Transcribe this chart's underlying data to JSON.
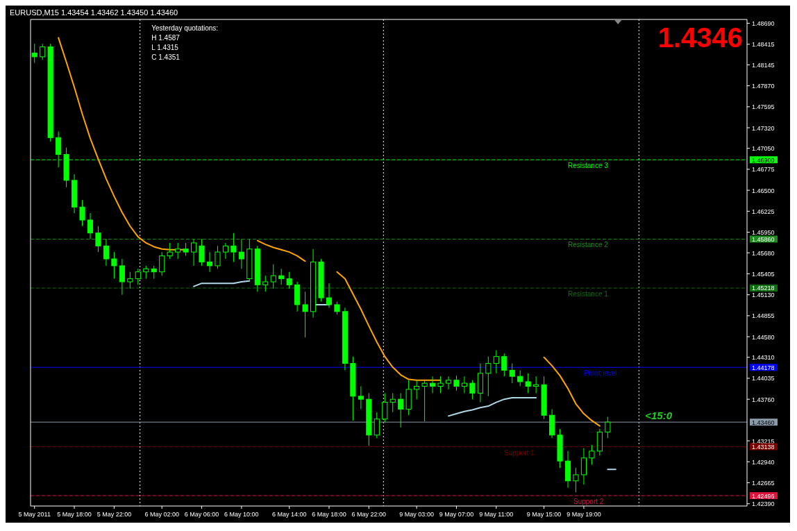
{
  "chart_data": {
    "type": "candlestick",
    "title": "EURUSD,M15  1.43454 1.43462 1.43450 1.43460",
    "annotations": [
      "1.4346",
      "<15:0",
      "Yesterday quotations:",
      "H 1.4587",
      "L 1.4315",
      "C 1.4351"
    ],
    "categories": [
      "5 May 2011",
      null,
      null,
      null,
      null,
      "5 May 18:00",
      null,
      null,
      null,
      null,
      "5 May 22:00",
      null,
      null,
      null,
      null,
      null,
      "6 May 02:00",
      null,
      null,
      null,
      null,
      "6 May 06:00",
      null,
      null,
      null,
      null,
      "6 May 10:00",
      null,
      null,
      null,
      null,
      null,
      "6 May 14:00",
      null,
      null,
      null,
      null,
      "6 May 18:00",
      null,
      null,
      null,
      null,
      "6 May 22:00",
      null,
      null,
      null,
      null,
      null,
      "9 May 03:00",
      null,
      null,
      null,
      null,
      "9 May 07:00",
      null,
      null,
      null,
      null,
      "9 May 11:00",
      null,
      null,
      null,
      null,
      null,
      "9 May 15:00",
      null,
      null,
      null,
      null,
      "9 May 19:00",
      null,
      null,
      null,
      null,
      null,
      null,
      null,
      null,
      null,
      null,
      null,
      null,
      null,
      null,
      null,
      null,
      null,
      null,
      null,
      null
    ],
    "ylim": [
      1.4236,
      1.4874
    ],
    "yticks": [
      {
        "value": 1.4869,
        "label": "1.48690"
      },
      {
        "value": 1.48415,
        "label": "1.48415"
      },
      {
        "value": 1.48145,
        "label": "1.48145"
      },
      {
        "value": 1.4787,
        "label": "1.47870"
      },
      {
        "value": 1.47595,
        "label": "1.47595"
      },
      {
        "value": 1.4732,
        "label": "1.47320"
      },
      {
        "value": 1.4705,
        "label": "1.47050"
      },
      {
        "value": 1.469,
        "label": "1.46900"
      },
      {
        "value": 1.46775,
        "label": "1.46775"
      },
      {
        "value": 1.465,
        "label": "1.46500"
      },
      {
        "value": 1.46225,
        "label": "1.46225"
      },
      {
        "value": 1.4595,
        "label": "1.45950"
      },
      {
        "value": 1.4586,
        "label": "1.45860"
      },
      {
        "value": 1.4568,
        "label": "1.45680"
      },
      {
        "value": 1.45405,
        "label": "1.45405"
      },
      {
        "value": 1.45218,
        "label": "1.45218"
      },
      {
        "value": 1.4513,
        "label": "1.45130"
      },
      {
        "value": 1.44855,
        "label": "1.44855"
      },
      {
        "value": 1.4458,
        "label": "1.44580"
      },
      {
        "value": 1.4431,
        "label": "1.44310"
      },
      {
        "value": 1.44178,
        "label": "1.44178"
      },
      {
        "value": 1.44035,
        "label": "1.44035"
      },
      {
        "value": 1.4376,
        "label": "1.43760"
      },
      {
        "value": 1.4346,
        "label": "1.43460"
      },
      {
        "value": 1.43215,
        "label": "1.43215"
      },
      {
        "value": 1.43138,
        "label": "1.43138"
      },
      {
        "value": 1.4294,
        "label": "1.42940"
      },
      {
        "value": 1.42665,
        "label": "1.42665"
      },
      {
        "value": 1.42496,
        "label": "1.42496"
      },
      {
        "value": 1.4239,
        "label": "1.42390"
      }
    ],
    "ref_lines": [
      {
        "axis": "y",
        "value": 1.469,
        "label": "Resistance 3",
        "color": "#00ff00",
        "line_style": "dashed"
      },
      {
        "axis": "y",
        "value": 1.4586,
        "label": "Resistance 2",
        "color": "#1e8c1e",
        "line_style": "dashed"
      },
      {
        "axis": "y",
        "value": 1.45218,
        "label": "Resistance 1",
        "color": "#0f6e0f",
        "line_style": "dashed"
      },
      {
        "axis": "y",
        "value": 1.44178,
        "label": "Piviot level",
        "color": "#0000ff",
        "line_style": "solid"
      },
      {
        "axis": "y",
        "value": 1.4346,
        "label": null,
        "color": "#8a9aaa",
        "line_style": "solid"
      },
      {
        "axis": "y",
        "value": 1.43138,
        "label": "Support 1",
        "color": "#7a0000",
        "line_style": "dashed"
      },
      {
        "axis": "y",
        "value": 1.42496,
        "label": "Support 2",
        "color": "#dc143c",
        "line_style": "dashed"
      }
    ],
    "series": [
      {
        "type": "line",
        "color": "#ffa500",
        "values": [
          null,
          null,
          null,
          1.485,
          1.4818,
          1.4785,
          1.475,
          1.4718,
          1.4691,
          1.4665,
          1.4642,
          1.4621,
          1.4603,
          1.4589,
          1.4581,
          1.4576,
          1.4573,
          1.4572,
          1.4572,
          1.4572,
          null,
          null,
          null,
          null,
          null,
          null,
          null,
          null,
          1.4584,
          1.4579,
          1.4575,
          1.4572,
          1.4569,
          1.4564,
          1.4557,
          null,
          null,
          null,
          1.4543,
          1.4534,
          1.4514,
          1.4494,
          1.4472,
          1.4451,
          1.4432,
          1.4418,
          1.4408,
          1.4402,
          1.4401,
          1.4401,
          1.4401,
          1.4401,
          null,
          null,
          null,
          null,
          null,
          null,
          null,
          null,
          null,
          null,
          null,
          null,
          1.4431,
          1.442,
          1.4407,
          1.439,
          1.437,
          1.4357,
          1.4348,
          1.4341,
          null,
          null,
          null,
          null,
          null,
          null,
          null,
          null,
          null,
          null,
          null,
          null,
          null,
          null,
          null,
          null,
          null,
          null
        ]
      },
      {
        "type": "line",
        "color": "#b0d8e8",
        "values": [
          null,
          null,
          null,
          null,
          null,
          null,
          null,
          null,
          null,
          null,
          null,
          null,
          null,
          null,
          null,
          null,
          null,
          null,
          null,
          null,
          1.4524,
          1.4528,
          1.4528,
          1.4528,
          1.4528,
          1.4528,
          1.453,
          1.4531,
          null,
          null,
          null,
          null,
          null,
          null,
          null,
          1.45,
          1.45,
          1.45,
          null,
          null,
          null,
          null,
          null,
          null,
          null,
          null,
          null,
          null,
          null,
          null,
          null,
          null,
          1.4354,
          1.4357,
          1.436,
          1.4362,
          1.4365,
          1.4367,
          1.4372,
          1.4376,
          1.4378,
          1.4378,
          1.4378,
          1.4378,
          null,
          null,
          null,
          null,
          null,
          null,
          null,
          null,
          1.4284,
          1.4284,
          null,
          null,
          null,
          null,
          null,
          null,
          null,
          null,
          null,
          null,
          null,
          null,
          null,
          null,
          null,
          null
        ]
      },
      {
        "color": "#00ff00",
        "ohlc": [
          [
            1.483,
            1.4842,
            1.4817,
            1.4825
          ],
          [
            1.4825,
            1.4842,
            1.4821,
            1.4838
          ],
          [
            1.4838,
            1.4842,
            1.4714,
            1.4719
          ],
          [
            1.4719,
            1.4727,
            1.468,
            1.4697
          ],
          [
            1.4697,
            1.4706,
            1.4654,
            1.4663
          ],
          [
            1.4663,
            1.4671,
            1.462,
            1.4628
          ],
          [
            1.4628,
            1.4637,
            1.4603,
            1.4611
          ],
          [
            1.4611,
            1.462,
            1.4586,
            1.4594
          ],
          [
            1.4594,
            1.4603,
            1.4569,
            1.4577
          ],
          [
            1.4577,
            1.4586,
            1.4551,
            1.456
          ],
          [
            1.456,
            1.4569,
            1.4534,
            1.4551
          ],
          [
            1.4551,
            1.456,
            1.4513,
            1.453
          ],
          [
            1.453,
            1.4543,
            1.4521,
            1.4534
          ],
          [
            1.4534,
            1.4547,
            1.4526,
            1.4543
          ],
          [
            1.4543,
            1.4551,
            1.4534,
            1.4547
          ],
          [
            1.4547,
            1.4551,
            1.4534,
            1.4543
          ],
          [
            1.4543,
            1.4569,
            1.4538,
            1.4564
          ],
          [
            1.4564,
            1.4581,
            1.456,
            1.4569
          ],
          [
            1.4569,
            1.4581,
            1.456,
            1.4573
          ],
          [
            1.4573,
            1.4581,
            1.4564,
            1.4569
          ],
          [
            1.4569,
            1.4586,
            1.4551,
            1.4581
          ],
          [
            1.4577,
            1.4586,
            1.4551,
            1.4556
          ],
          [
            1.4556,
            1.4569,
            1.4543,
            1.4551
          ],
          [
            1.4551,
            1.4577,
            1.4547,
            1.4569
          ],
          [
            1.4569,
            1.4581,
            1.456,
            1.4577
          ],
          [
            1.4577,
            1.4594,
            1.4556,
            1.4569
          ],
          [
            1.4569,
            1.4586,
            1.4547,
            1.456
          ],
          [
            1.4534,
            1.4586,
            1.453,
            1.4573
          ],
          [
            1.4573,
            1.4577,
            1.4517,
            1.4526
          ],
          [
            1.4526,
            1.4538,
            1.4517,
            1.453
          ],
          [
            1.453,
            1.4553,
            1.4521,
            1.4538
          ],
          [
            1.4538,
            1.4547,
            1.4526,
            1.4534
          ],
          [
            1.4534,
            1.4543,
            1.4521,
            1.4526
          ],
          [
            1.4526,
            1.453,
            1.4491,
            1.45
          ],
          [
            1.45,
            1.4517,
            1.4457,
            1.4491
          ],
          [
            1.4491,
            1.4573,
            1.4483,
            1.4556
          ],
          [
            1.4556,
            1.456,
            1.4504,
            1.4509
          ],
          [
            1.4509,
            1.4528,
            1.4496,
            1.45
          ],
          [
            1.45,
            1.4504,
            1.4487,
            1.4491
          ],
          [
            1.4491,
            1.4496,
            1.4414,
            1.4423
          ],
          [
            1.4423,
            1.4432,
            1.4348,
            1.438
          ],
          [
            1.438,
            1.4393,
            1.4363,
            1.4376
          ],
          [
            1.4376,
            1.4384,
            1.4315,
            1.4329
          ],
          [
            1.4329,
            1.4359,
            1.4325,
            1.435
          ],
          [
            1.435,
            1.4384,
            1.4346,
            1.4372
          ],
          [
            1.4372,
            1.4384,
            1.4359,
            1.4376
          ],
          [
            1.4376,
            1.4384,
            1.4339,
            1.4363
          ],
          [
            1.4363,
            1.4401,
            1.4355,
            1.4389
          ],
          [
            1.4389,
            1.4401,
            1.4376,
            1.4393
          ],
          [
            1.4393,
            1.4401,
            1.4347,
            1.4397
          ],
          [
            1.4397,
            1.4406,
            1.4384,
            1.4393
          ],
          [
            1.4393,
            1.4406,
            1.4384,
            1.4397
          ],
          [
            1.4397,
            1.4406,
            1.4389,
            1.4401
          ],
          [
            1.4401,
            1.4407,
            1.4387,
            1.4393
          ],
          [
            1.4393,
            1.4406,
            1.4384,
            1.4397
          ],
          [
            1.4397,
            1.4401,
            1.4376,
            1.4384
          ],
          [
            1.4384,
            1.4423,
            1.4372,
            1.441
          ],
          [
            1.441,
            1.4432,
            1.438,
            1.4423
          ],
          [
            1.4423,
            1.444,
            1.441,
            1.4432
          ],
          [
            1.4432,
            1.4436,
            1.4406,
            1.4414
          ],
          [
            1.4414,
            1.4423,
            1.4397,
            1.4406
          ],
          [
            1.4406,
            1.4414,
            1.4393,
            1.4399
          ],
          [
            1.4399,
            1.441,
            1.4384,
            1.4393
          ],
          [
            1.4393,
            1.4406,
            1.4384,
            1.4395
          ],
          [
            1.4395,
            1.4406,
            1.435,
            1.4355
          ],
          [
            1.4355,
            1.4363,
            1.4325,
            1.4329
          ],
          [
            1.4329,
            1.4337,
            1.4286,
            1.4295
          ],
          [
            1.4295,
            1.4308,
            1.426,
            1.4269
          ],
          [
            1.4269,
            1.4286,
            1.4254,
            1.4277
          ],
          [
            1.4277,
            1.4312,
            1.4264,
            1.4299
          ],
          [
            1.4299,
            1.4316,
            1.429,
            1.4308
          ],
          [
            1.4308,
            1.4337,
            1.4302,
            1.4333
          ],
          [
            1.4333,
            1.4353,
            1.4325,
            1.4346
          ],
          null,
          null,
          null,
          null,
          null,
          null,
          null,
          null,
          null,
          null,
          null,
          null,
          null,
          null,
          null,
          null,
          null
        ]
      }
    ]
  }
}
